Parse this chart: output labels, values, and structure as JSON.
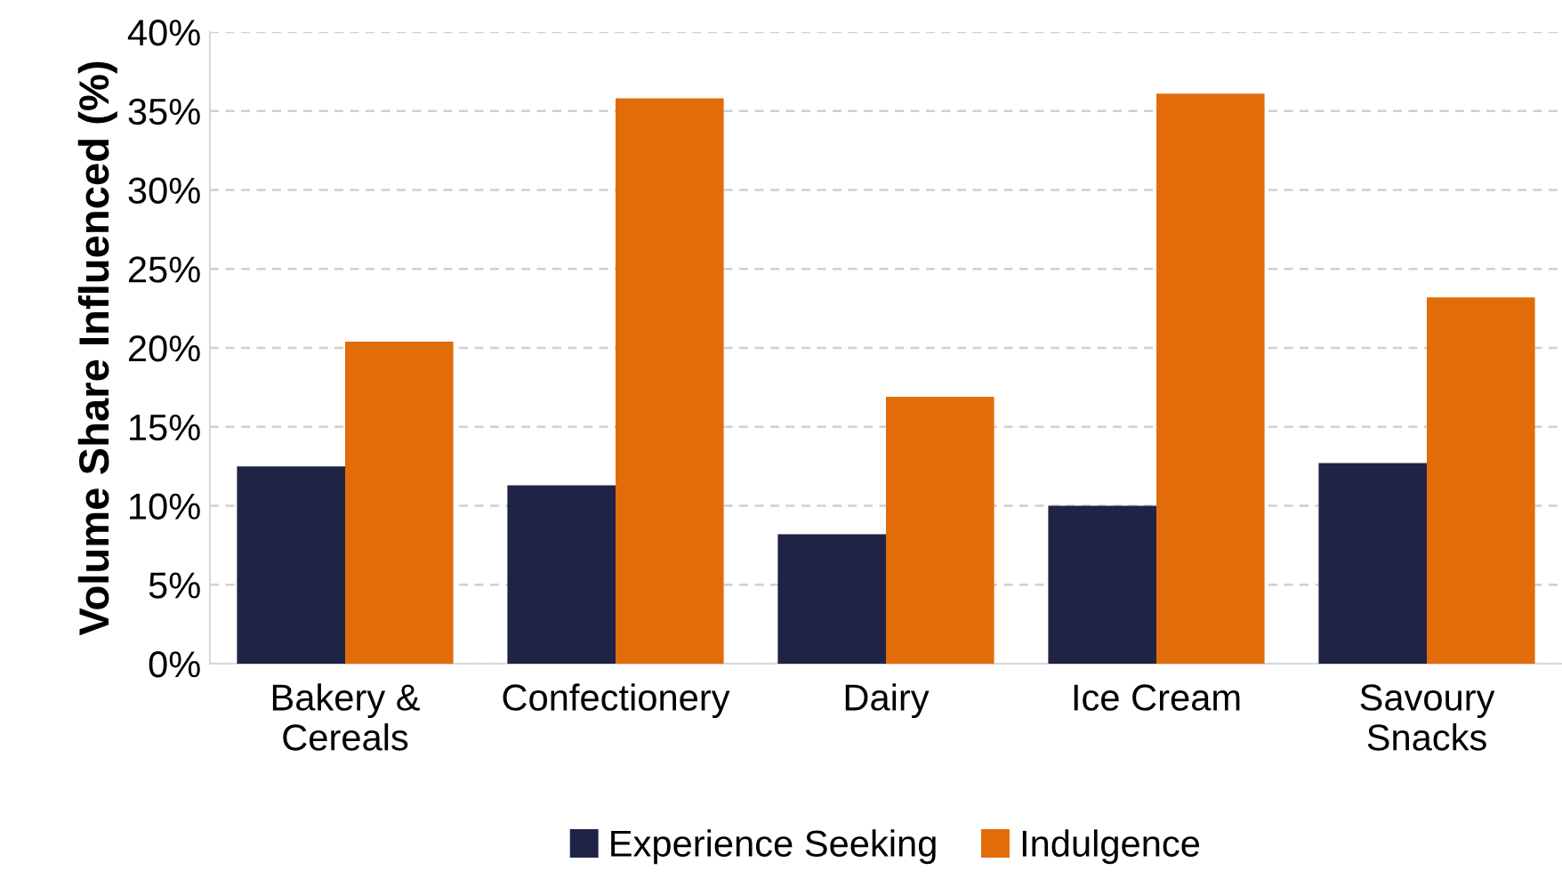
{
  "chart_data": {
    "type": "bar",
    "ylabel": "Volume Share Influenced (%)",
    "categories": [
      "Bakery &\nCereals",
      "Confectionery",
      "Dairy",
      "Ice Cream",
      "Savoury\nSnacks"
    ],
    "series": [
      {
        "name": "Experience Seeking",
        "color": "#1f2445",
        "values": [
          12.5,
          11.3,
          8.2,
          10.0,
          12.7
        ]
      },
      {
        "name": "Indulgence",
        "color": "#e36c0a",
        "values": [
          20.4,
          35.8,
          16.9,
          36.1,
          23.2
        ]
      }
    ],
    "ylim": [
      0,
      40
    ],
    "yticks": [
      {
        "value": 0,
        "label": "0%"
      },
      {
        "value": 5,
        "label": "5%"
      },
      {
        "value": 10,
        "label": "10%"
      },
      {
        "value": 15,
        "label": "15%"
      },
      {
        "value": 20,
        "label": "20%"
      },
      {
        "value": 25,
        "label": "25%"
      },
      {
        "value": 30,
        "label": "30%"
      },
      {
        "value": 35,
        "label": "35%"
      },
      {
        "value": 40,
        "label": "40%"
      }
    ],
    "grid": "y",
    "legend": "bottom"
  }
}
